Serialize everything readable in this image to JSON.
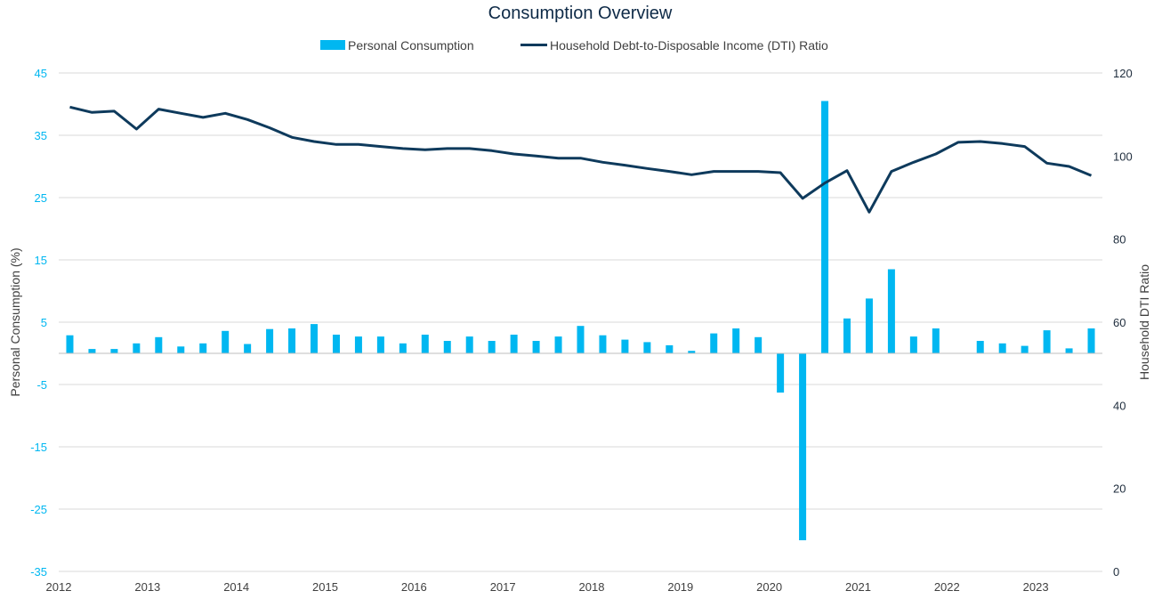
{
  "chart_data": {
    "type": "bar+line",
    "title": "Consumption Overview",
    "legend_position": "top",
    "grid": true,
    "x_ticks": [
      "2012",
      "2013",
      "2014",
      "2015",
      "2016",
      "2017",
      "2018",
      "2019",
      "2020",
      "2021",
      "2022",
      "2023"
    ],
    "y_left": {
      "label": "Personal Consumption (%)",
      "range": [
        -35,
        45
      ],
      "ticks": [
        "45",
        "35",
        "25",
        "15",
        "5",
        "-5",
        "-15",
        "-25",
        "-35"
      ]
    },
    "y_right": {
      "label": "Household DTI Ratio",
      "range": [
        0,
        120
      ],
      "ticks": [
        "120",
        "100",
        "80",
        "60",
        "40",
        "20",
        "0"
      ]
    },
    "colors": {
      "bar": "#00b7f1",
      "line": "#0e3a5c",
      "left_axis_text": "#00b7f1",
      "right_axis_text": "#1f2d3d",
      "grid": "#d9d9d9"
    },
    "series": [
      {
        "name": "Personal Consumption",
        "kind": "bar",
        "axis": "left",
        "values": [
          2.9,
          0.7,
          0.7,
          1.6,
          2.6,
          1.1,
          1.6,
          3.6,
          1.5,
          3.9,
          4.0,
          4.7,
          3.0,
          2.7,
          2.7,
          1.6,
          3.0,
          2.0,
          2.7,
          2.0,
          3.0,
          2.0,
          2.7,
          4.4,
          2.9,
          2.2,
          1.8,
          1.3,
          0.4,
          3.2,
          4.0,
          2.6,
          -6.3,
          -30.0,
          40.5,
          5.6,
          8.8,
          13.5,
          2.7,
          4.0,
          0.0,
          2.0,
          1.6,
          1.2,
          3.7,
          0.8,
          4.0
        ]
      },
      {
        "name": "Household Debt-to-Disposable Income (DTI) Ratio",
        "kind": "line",
        "axis": "right",
        "values": [
          111.8,
          110.5,
          110.8,
          106.5,
          111.3,
          110.3,
          109.3,
          110.3,
          108.8,
          106.8,
          104.5,
          103.5,
          102.8,
          102.8,
          102.3,
          101.8,
          101.5,
          101.8,
          101.8,
          101.3,
          100.5,
          100.0,
          99.5,
          99.5,
          98.5,
          97.8,
          97.0,
          96.3,
          95.5,
          96.3,
          96.3,
          96.3,
          96.0,
          89.8,
          93.5,
          96.5,
          86.5,
          96.3,
          98.5,
          100.5,
          103.3,
          103.5,
          103.0,
          102.3,
          98.3,
          97.5,
          95.3
        ]
      }
    ]
  }
}
